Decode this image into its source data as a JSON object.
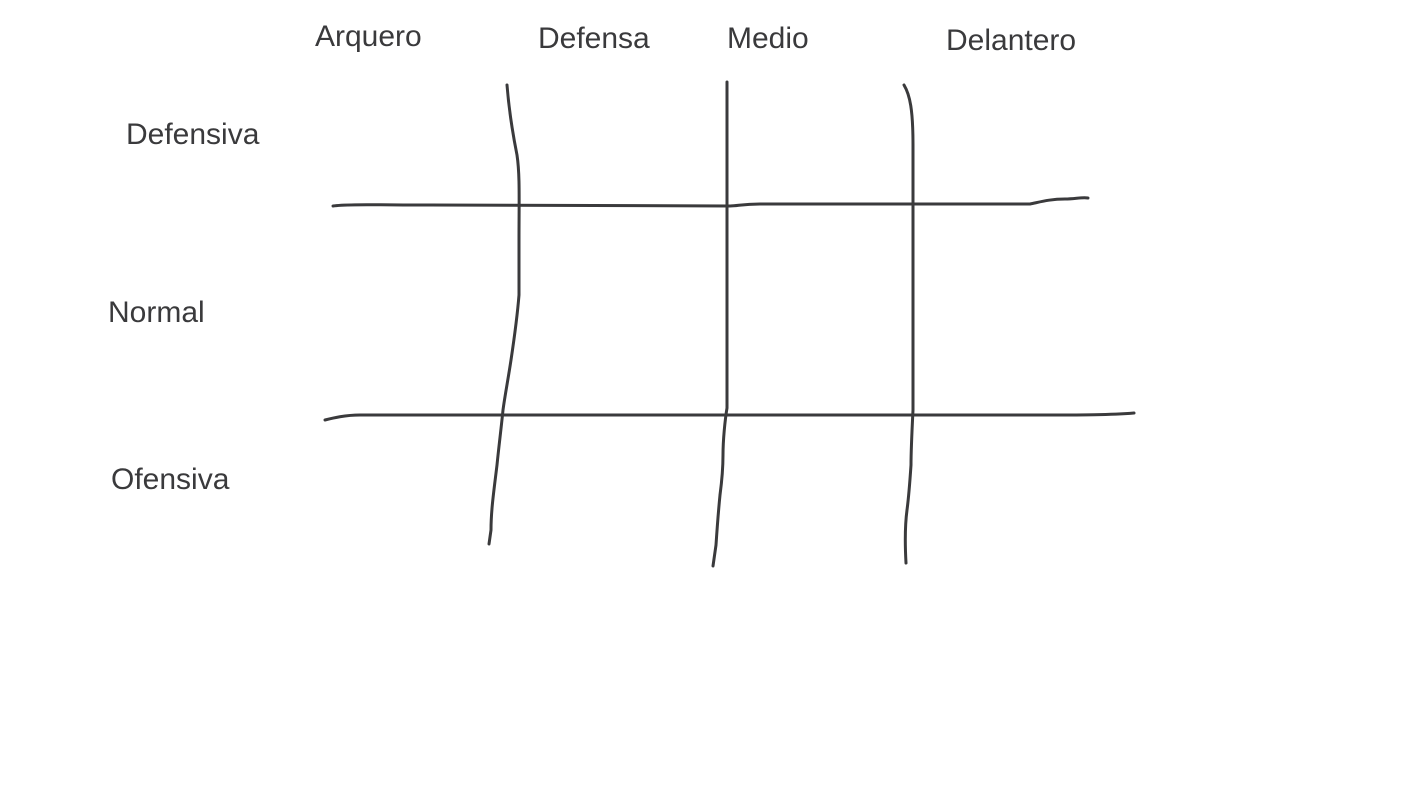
{
  "columns": {
    "arquero": "Arquero",
    "defensa": "Defensa",
    "medio": "Medio",
    "delantero": "Delantero"
  },
  "rows": {
    "defensiva": "Defensiva",
    "normal": "Normal",
    "ofensiva": "Ofensiva"
  },
  "colors": {
    "ink": "#3a3a3c",
    "background": "#ffffff"
  }
}
